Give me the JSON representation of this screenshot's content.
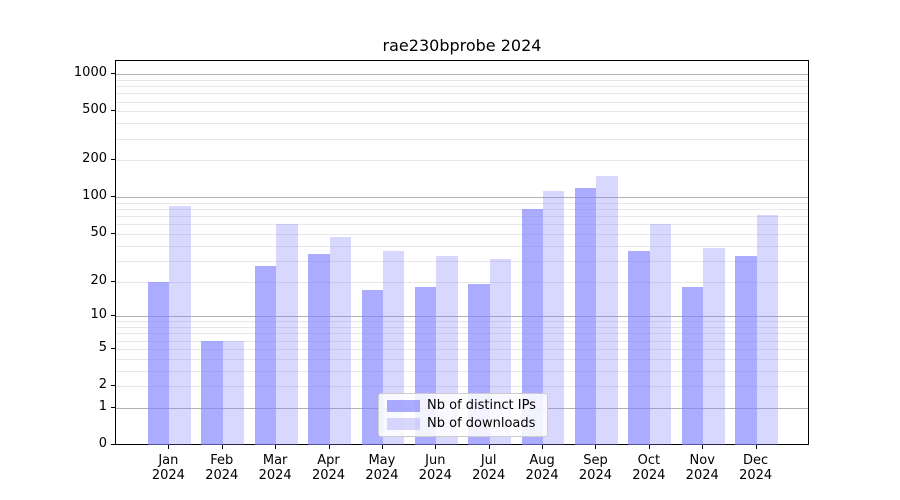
{
  "title": "rae230bprobe 2024",
  "chart_data": {
    "type": "bar",
    "title": "rae230bprobe 2024",
    "scale": "log1p",
    "months": [
      "Jan",
      "Feb",
      "Mar",
      "Apr",
      "May",
      "Jun",
      "Jul",
      "Aug",
      "Sep",
      "Oct",
      "Nov",
      "Dec"
    ],
    "year": "2024",
    "series": [
      {
        "name": "Nb of distinct IPs",
        "color": "rgba(127,127,255,0.66)",
        "values": [
          20,
          6,
          27,
          34,
          17,
          18,
          19,
          80,
          120,
          36,
          18,
          33
        ]
      },
      {
        "name": "Nb of downloads",
        "color": "rgba(127,127,255,0.30)",
        "values": [
          85,
          6,
          60,
          47,
          36,
          33,
          31,
          113,
          150,
          60,
          38,
          72
        ]
      }
    ],
    "y_ticks": [
      0,
      1,
      2,
      5,
      10,
      20,
      50,
      100,
      200,
      500,
      1000
    ],
    "ylim": [
      0,
      1286
    ],
    "grid": true,
    "legend_position": "bottom-center",
    "colors": {
      "major_grid": "#b2b2b2",
      "minor_grid": "#e7e7e7",
      "axis": "#000000",
      "background": "#ffffff"
    }
  }
}
